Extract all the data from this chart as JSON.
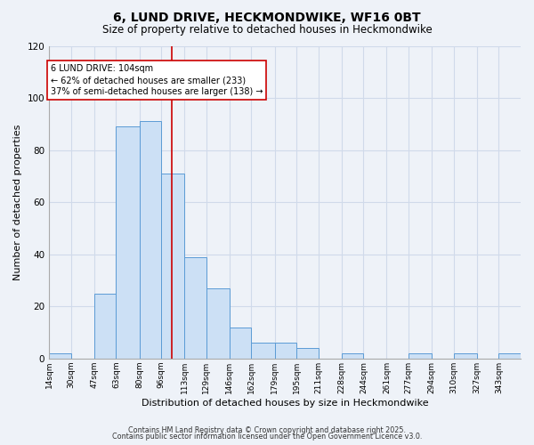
{
  "title": "6, LUND DRIVE, HECKMONDWIKE, WF16 0BT",
  "subtitle": "Size of property relative to detached houses in Heckmondwike",
  "xlabel": "Distribution of detached houses by size in Heckmondwike",
  "ylabel": "Number of detached properties",
  "bin_labels": [
    "14sqm",
    "30sqm",
    "47sqm",
    "63sqm",
    "80sqm",
    "96sqm",
    "113sqm",
    "129sqm",
    "146sqm",
    "162sqm",
    "179sqm",
    "195sqm",
    "211sqm",
    "228sqm",
    "244sqm",
    "261sqm",
    "277sqm",
    "294sqm",
    "310sqm",
    "327sqm",
    "343sqm"
  ],
  "bin_edges": [
    14,
    30,
    47,
    63,
    80,
    96,
    113,
    129,
    146,
    162,
    179,
    195,
    211,
    228,
    244,
    261,
    277,
    294,
    310,
    327,
    343,
    359
  ],
  "counts": [
    2,
    0,
    25,
    89,
    91,
    71,
    39,
    27,
    12,
    6,
    6,
    4,
    0,
    2,
    0,
    0,
    2,
    0,
    2,
    0,
    2
  ],
  "bar_facecolor": "#cce0f5",
  "bar_edgecolor": "#5b9bd5",
  "vline_x": 104,
  "vline_color": "#cc0000",
  "annotation_line1": "6 LUND DRIVE: 104sqm",
  "annotation_line2": "← 62% of detached houses are smaller (233)",
  "annotation_line3": "37% of semi-detached houses are larger (138) →",
  "annotation_box_edgecolor": "#cc0000",
  "annotation_box_facecolor": "#ffffff",
  "ylim": [
    0,
    120
  ],
  "yticks": [
    0,
    20,
    40,
    60,
    80,
    100,
    120
  ],
  "grid_color": "#d0daea",
  "bg_color": "#eef2f8",
  "footer1": "Contains HM Land Registry data © Crown copyright and database right 2025.",
  "footer2": "Contains public sector information licensed under the Open Government Licence v3.0."
}
